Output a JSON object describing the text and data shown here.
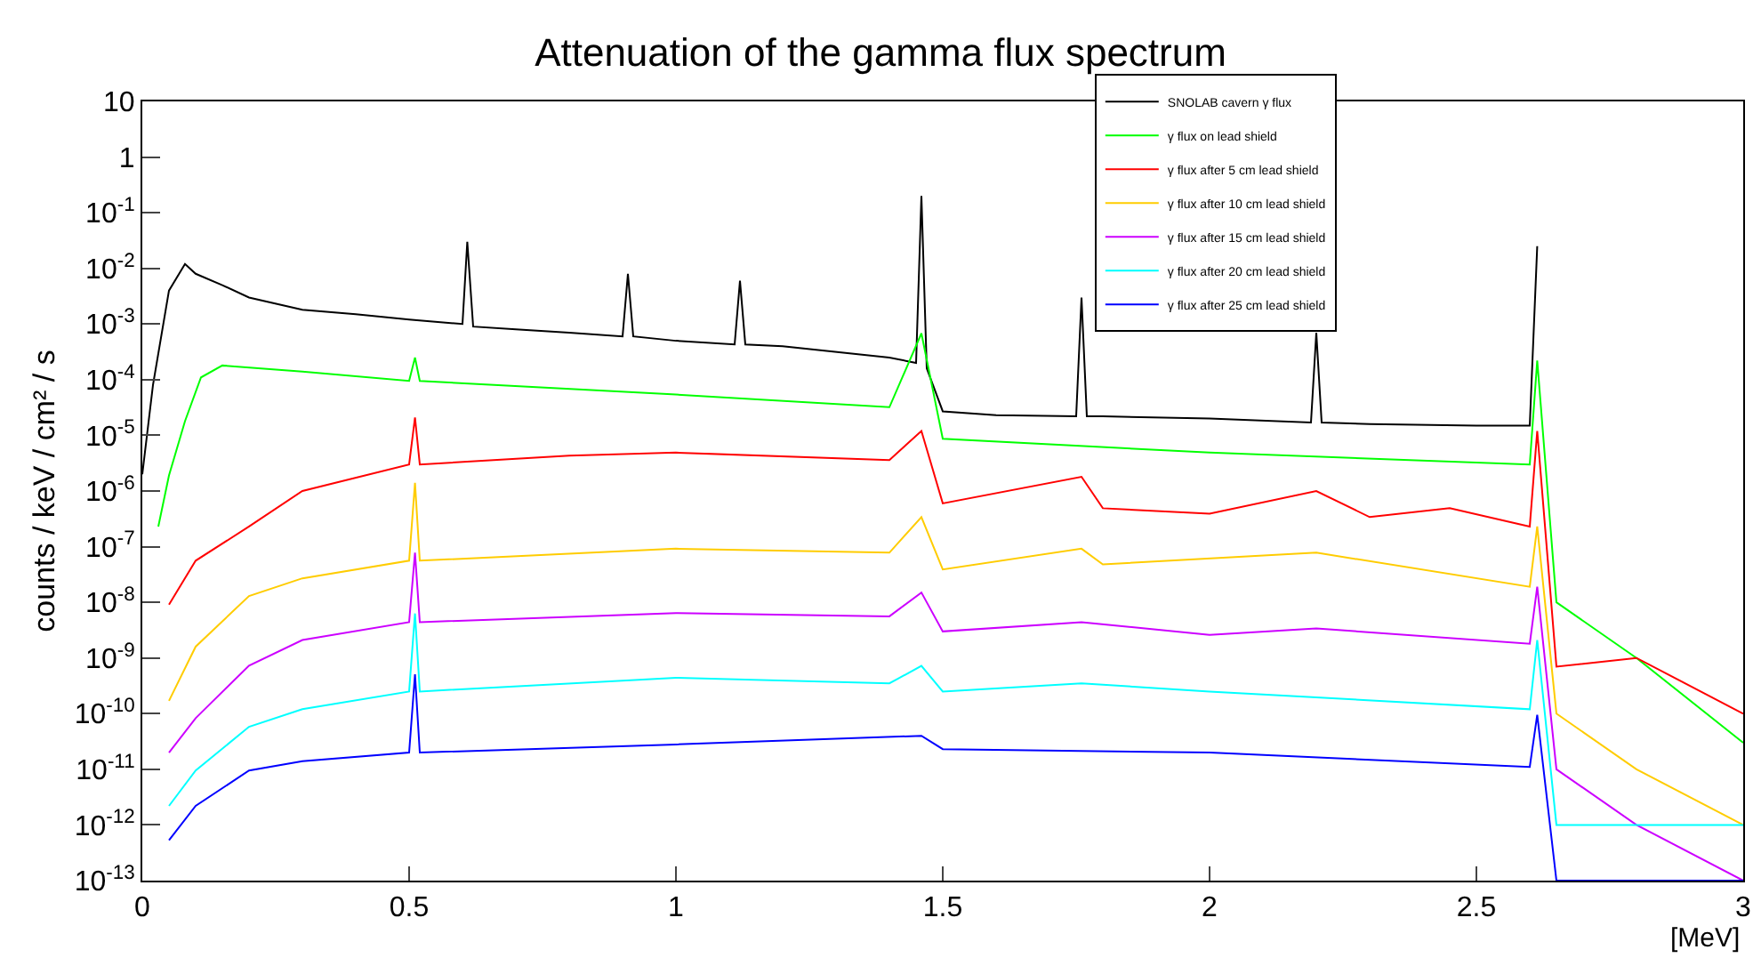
{
  "chart_data": {
    "type": "line",
    "title": "Attenuation of the gamma flux spectrum",
    "xlabel": "[MeV]",
    "ylabel": "counts / keV / cm² / s",
    "log": "y",
    "grid": false,
    "legend": "top right",
    "marker": "none",
    "line_style": "solid",
    "xlim": [
      0,
      3
    ],
    "xticks": [
      0,
      0.5,
      1,
      1.5,
      2,
      2.5,
      3
    ],
    "ylim": [
      1e-13,
      10
    ],
    "yticks": [
      10,
      1,
      {
        "value": 0.1,
        "label": "10$^{-1}$"
      },
      {
        "value": 0.01,
        "label": "10$^{-2}$"
      },
      {
        "value": 0.001,
        "label": "10$^{-3}$"
      },
      {
        "value": 0.0001,
        "label": "10$^{-4}$"
      },
      {
        "value": 1e-05,
        "label": "10$^{-5}$"
      },
      {
        "value": 1e-06,
        "label": "10$^{-6}$"
      },
      {
        "value": 1e-07,
        "label": "10$^{-7}$"
      },
      {
        "value": 1e-08,
        "label": "10$^{-8}$"
      },
      {
        "value": 1e-09,
        "label": "10$^{-9}$"
      },
      {
        "value": 1e-10,
        "label": "10$^{-10}$"
      },
      {
        "value": 1e-11,
        "label": "10$^{-11}$"
      },
      {
        "value": 1e-12,
        "label": "10$^{-12}$"
      },
      {
        "value": 1e-13,
        "label": "10$^{-13}$"
      }
    ],
    "series": [
      {
        "name": "SNOLAB cavern γ flux",
        "color": "#000000",
        "x": [
          0,
          0.02,
          0.05,
          0.08,
          0.1,
          0.15,
          0.2,
          0.3,
          0.4,
          0.5,
          0.6,
          0.609,
          0.62,
          0.7,
          0.8,
          0.9,
          0.91,
          0.92,
          1.0,
          1.11,
          1.12,
          1.13,
          1.2,
          1.4,
          1.45,
          1.46,
          1.47,
          1.5,
          1.6,
          1.75,
          1.76,
          1.77,
          1.8,
          2.0,
          2.19,
          2.2,
          2.21,
          2.3,
          2.5,
          2.6,
          2.614
        ],
        "values": [
          2e-06,
          8e-05,
          0.004,
          0.012,
          0.008,
          0.005,
          0.003,
          0.0018,
          0.0015,
          0.0012,
          0.001,
          0.03,
          0.0009,
          0.0008,
          0.0007,
          0.0006,
          0.008,
          0.0006,
          0.0005,
          0.00043,
          0.006,
          0.00043,
          0.0004,
          0.00025,
          0.0002,
          0.2,
          0.00016,
          2.7e-05,
          2.3e-05,
          2.2e-05,
          0.003,
          2.2e-05,
          2.2e-05,
          2e-05,
          1.7e-05,
          0.0007,
          1.7e-05,
          1.6e-05,
          1.5e-05,
          1.5e-05,
          0.025
        ]
      },
      {
        "name": "γ flux on lead shield",
        "color": "#00ff00",
        "x": [
          0.03,
          0.05,
          0.08,
          0.11,
          0.15,
          0.3,
          0.5,
          0.511,
          0.52,
          1.0,
          1.4,
          1.46,
          1.5,
          2.0,
          2.6,
          2.614,
          2.65,
          2.8,
          3.0
        ],
        "values": [
          2.3e-07,
          1.9e-06,
          1.8e-05,
          0.00011,
          0.00018,
          0.00014,
          9.5e-05,
          0.00025,
          9.5e-05,
          5.4e-05,
          3.2e-05,
          0.00068,
          8.7e-06,
          4.9e-06,
          3e-06,
          0.00022,
          1e-08,
          1e-09,
          3e-11
        ]
      },
      {
        "name": "γ flux after 5 cm lead shield",
        "color": "#ff0000",
        "x": [
          0.05,
          0.1,
          0.2,
          0.3,
          0.5,
          0.511,
          0.52,
          0.8,
          1.0,
          1.4,
          1.46,
          1.5,
          1.76,
          1.8,
          2.0,
          2.2,
          2.3,
          2.45,
          2.6,
          2.614,
          2.65,
          2.8,
          3.0
        ],
        "values": [
          9.1e-09,
          5.6e-08,
          2.3e-07,
          1e-06,
          3e-06,
          2.1e-05,
          3e-06,
          4.3e-06,
          4.9e-06,
          3.6e-06,
          1.2e-05,
          6e-07,
          1.8e-06,
          4.9e-07,
          3.9e-07,
          1e-06,
          3.4e-07,
          4.9e-07,
          2.3e-07,
          1.2e-05,
          7e-10,
          1e-09,
          1e-10
        ]
      },
      {
        "name": "γ flux after 10 cm lead shield",
        "color": "#ffcc00",
        "x": [
          0.05,
          0.1,
          0.2,
          0.3,
          0.5,
          0.511,
          0.52,
          1.0,
          1.4,
          1.46,
          1.5,
          1.76,
          1.8,
          2.2,
          2.6,
          2.614,
          2.65,
          2.8,
          3.0
        ],
        "values": [
          1.7e-10,
          1.6e-09,
          1.3e-08,
          2.7e-08,
          5.6e-08,
          1.4e-06,
          5.6e-08,
          9.2e-08,
          7.8e-08,
          3.4e-07,
          3.9e-08,
          9.2e-08,
          4.8e-08,
          7.8e-08,
          1.9e-08,
          2.3e-07,
          1e-10,
          1e-11,
          1e-12
        ]
      },
      {
        "name": "γ flux after 15 cm lead shield",
        "color": "#cc00ff",
        "x": [
          0.05,
          0.1,
          0.2,
          0.3,
          0.5,
          0.511,
          0.52,
          1.0,
          1.4,
          1.46,
          1.5,
          1.76,
          2.0,
          2.2,
          2.6,
          2.614,
          2.65,
          2.8,
          3.0
        ],
        "values": [
          2e-11,
          8.3e-11,
          7.3e-10,
          2.1e-09,
          4.4e-09,
          7.8e-08,
          4.4e-09,
          6.4e-09,
          5.6e-09,
          1.5e-08,
          3e-09,
          4.4e-09,
          2.6e-09,
          3.4e-09,
          1.8e-09,
          1.9e-08,
          1e-11,
          1e-12,
          1e-13
        ]
      },
      {
        "name": "γ flux after 20 cm lead shield",
        "color": "#00ffff",
        "x": [
          0.05,
          0.1,
          0.2,
          0.3,
          0.5,
          0.511,
          0.52,
          1.0,
          1.4,
          1.46,
          1.5,
          1.76,
          2.0,
          2.6,
          2.614,
          2.65,
          2.8,
          3.0
        ],
        "values": [
          2.2e-12,
          9.5e-12,
          5.8e-11,
          1.2e-10,
          2.5e-10,
          6.3e-09,
          2.5e-10,
          4.4e-10,
          3.5e-10,
          7.2e-10,
          2.5e-10,
          3.5e-10,
          2.5e-10,
          1.2e-10,
          2.1e-09,
          1e-12,
          1e-12,
          1e-12
        ]
      },
      {
        "name": "γ flux after 25 cm lead shield",
        "color": "#0000ff",
        "x": [
          0.05,
          0.1,
          0.2,
          0.3,
          0.5,
          0.511,
          0.52,
          1.0,
          1.46,
          1.5,
          2.0,
          2.6,
          2.614,
          2.65,
          2.8,
          3.0
        ],
        "values": [
          5.3e-13,
          2.2e-12,
          9.5e-12,
          1.4e-11,
          2e-11,
          5.1e-10,
          2e-11,
          2.8e-11,
          4e-11,
          2.3e-11,
          2e-11,
          1.1e-11,
          9.5e-11,
          1e-13,
          1e-13,
          1e-13
        ]
      }
    ]
  }
}
